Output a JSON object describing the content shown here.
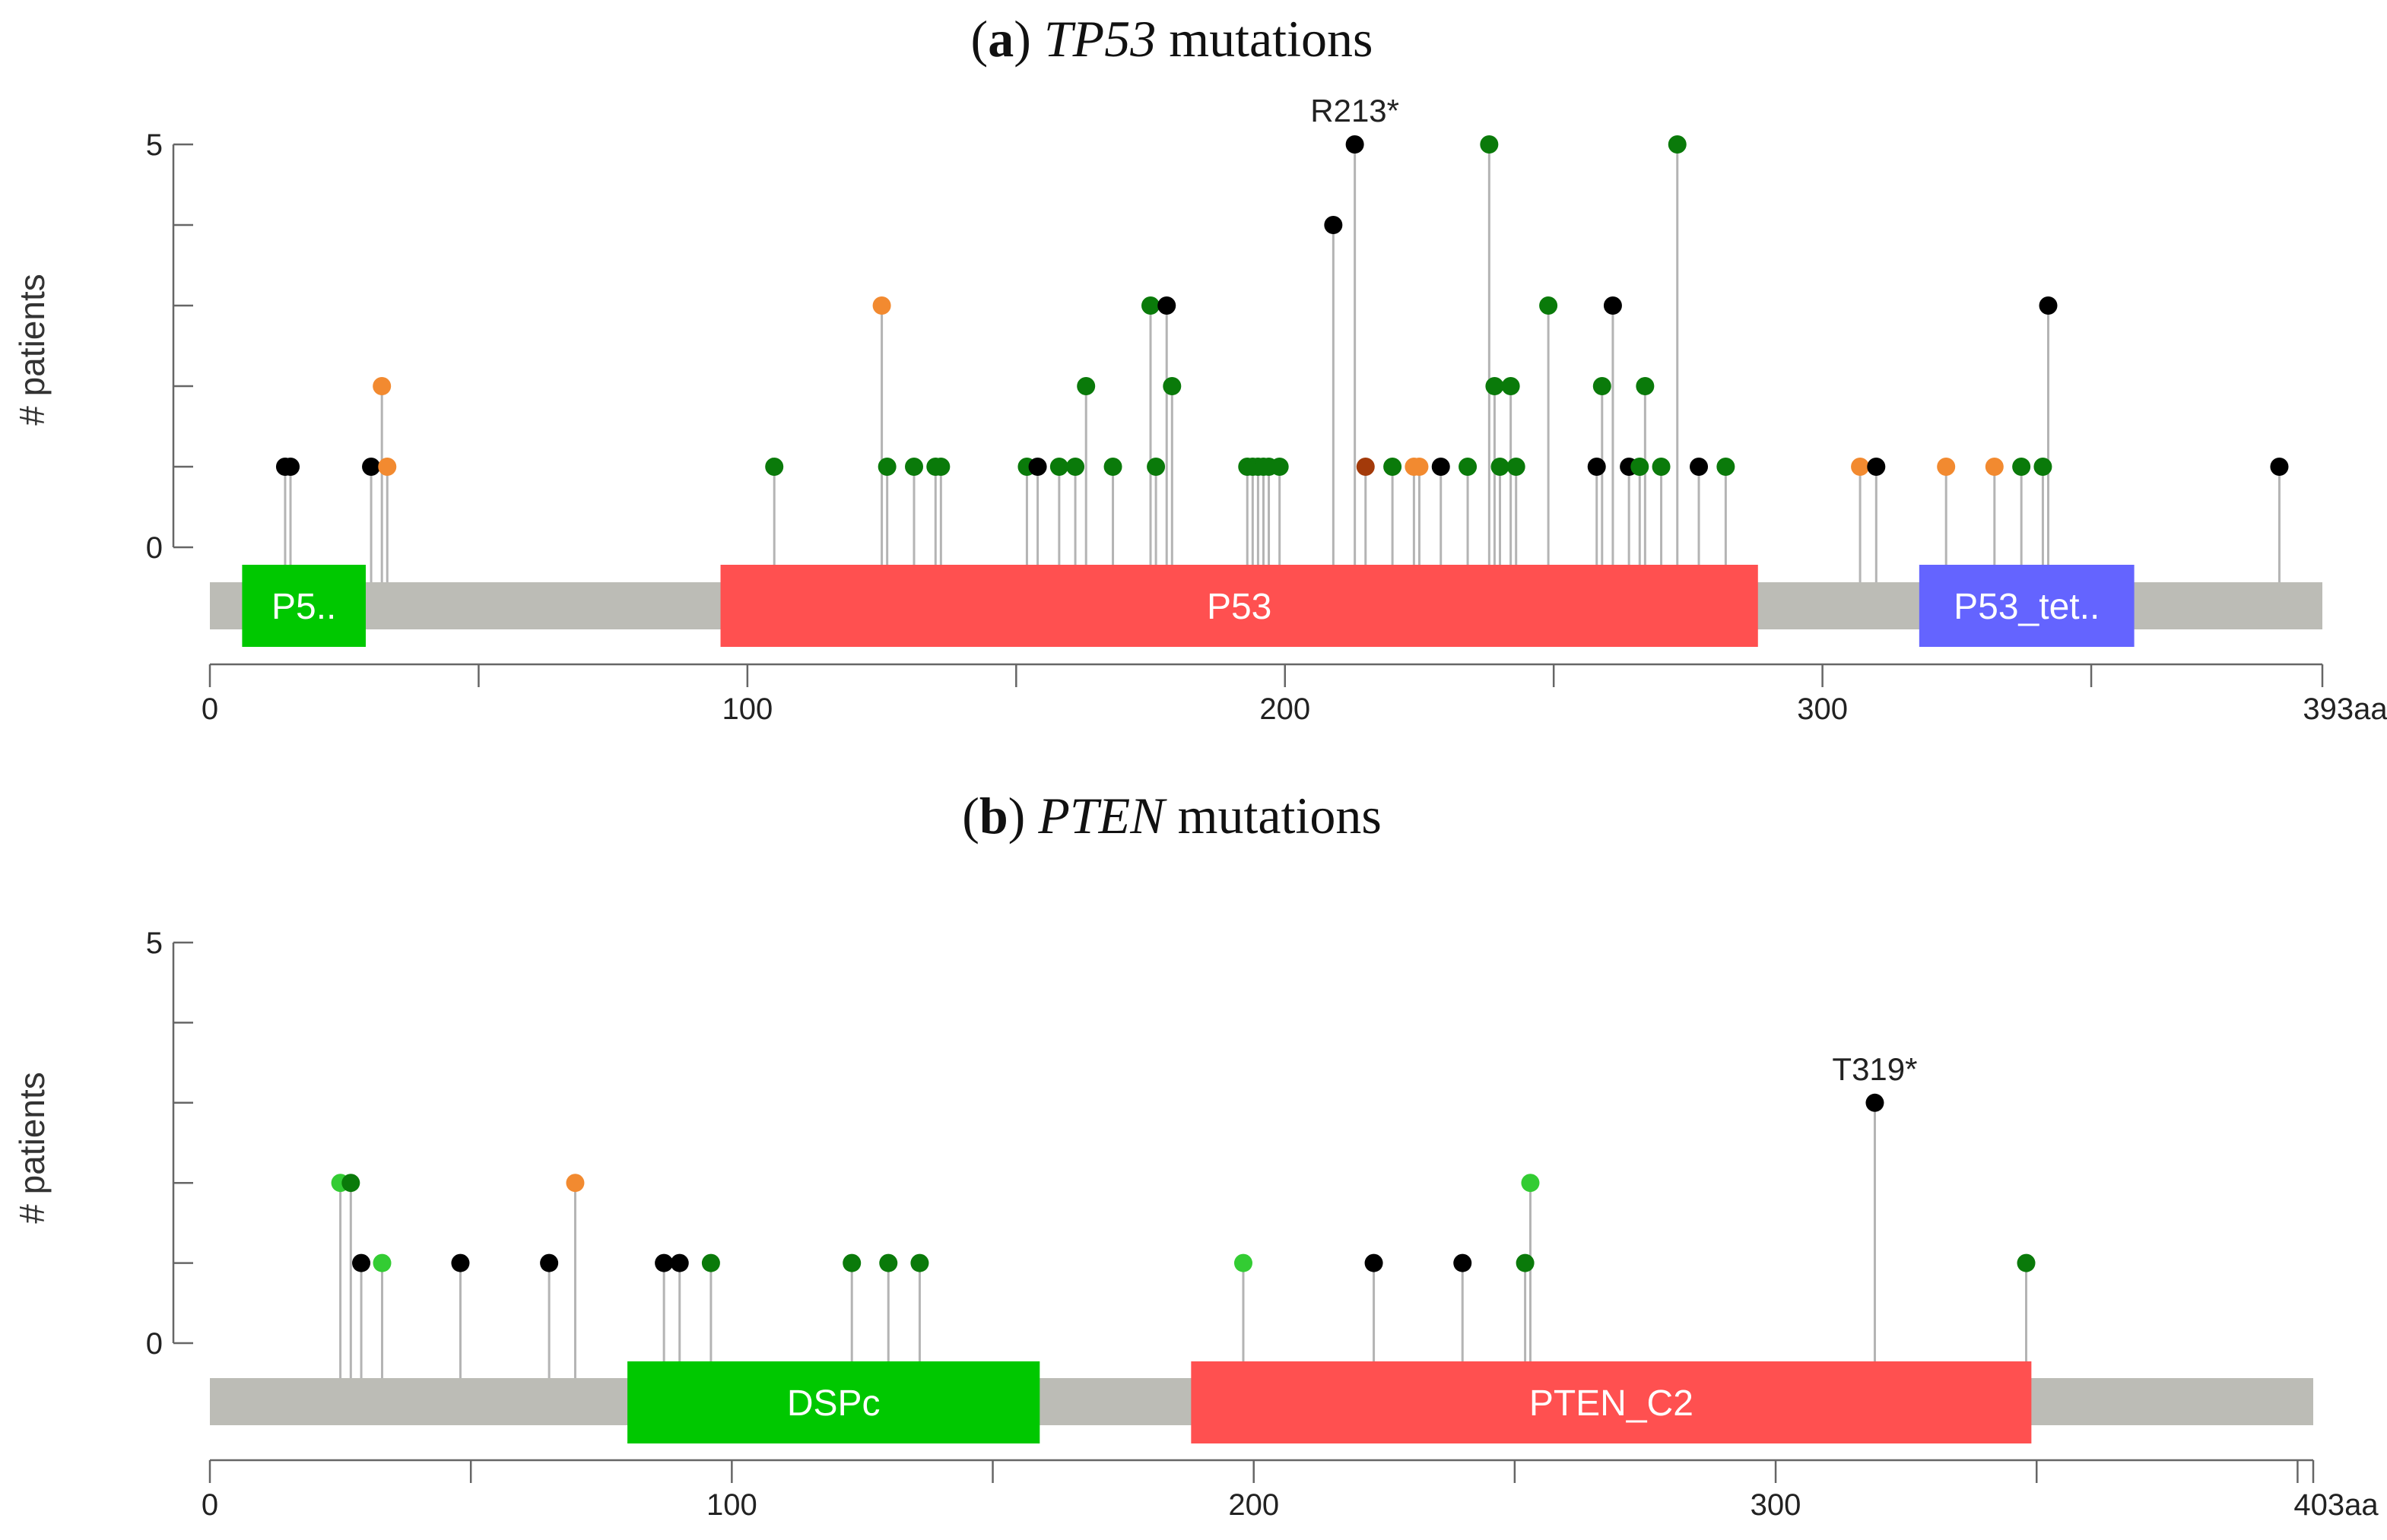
{
  "chart_data": [
    {
      "type": "scatter",
      "subtype": "lollipop",
      "title": {
        "label": "a",
        "gene": "TP53",
        "suffix": "mutations"
      },
      "ylabel": "# patients",
      "ylim": [
        0,
        5
      ],
      "yticks": [
        "0",
        "5"
      ],
      "protein_length": 393,
      "xticks": [
        {
          "v": 0,
          "label": "0"
        },
        {
          "v": 100,
          "label": "100"
        },
        {
          "v": 200,
          "label": "200"
        },
        {
          "v": 300,
          "label": "300"
        },
        {
          "v": 393,
          "label": "393aa"
        }
      ],
      "xminor": [
        50,
        150,
        250,
        350
      ],
      "domains": [
        {
          "name": "P5..",
          "start": 6,
          "end": 29,
          "color": "#00c800"
        },
        {
          "name": "P53",
          "start": 95,
          "end": 288,
          "color": "#ff5050"
        },
        {
          "name": "P53_tet..",
          "start": 318,
          "end": 358,
          "color": "#6464ff"
        }
      ],
      "mutations": [
        {
          "pos": 14,
          "count": 1,
          "color": "#000000"
        },
        {
          "pos": 15,
          "count": 1,
          "color": "#000000"
        },
        {
          "pos": 30,
          "count": 1,
          "color": "#000000"
        },
        {
          "pos": 32,
          "count": 2,
          "color": "#f28a30"
        },
        {
          "pos": 33,
          "count": 1,
          "color": "#f28a30"
        },
        {
          "pos": 105,
          "count": 1,
          "color": "#0a7a0a"
        },
        {
          "pos": 125,
          "count": 3,
          "color": "#f28a30"
        },
        {
          "pos": 126,
          "count": 1,
          "color": "#0a7a0a"
        },
        {
          "pos": 131,
          "count": 1,
          "color": "#0a7a0a"
        },
        {
          "pos": 135,
          "count": 1,
          "color": "#0a7a0a"
        },
        {
          "pos": 136,
          "count": 1,
          "color": "#0a7a0a"
        },
        {
          "pos": 152,
          "count": 1,
          "color": "#0a7a0a"
        },
        {
          "pos": 154,
          "count": 1,
          "color": "#000000"
        },
        {
          "pos": 158,
          "count": 1,
          "color": "#0a7a0a"
        },
        {
          "pos": 161,
          "count": 1,
          "color": "#0a7a0a"
        },
        {
          "pos": 163,
          "count": 2,
          "color": "#0a7a0a"
        },
        {
          "pos": 168,
          "count": 1,
          "color": "#0a7a0a"
        },
        {
          "pos": 175,
          "count": 3,
          "color": "#0a7a0a"
        },
        {
          "pos": 176,
          "count": 1,
          "color": "#0a7a0a"
        },
        {
          "pos": 178,
          "count": 3,
          "color": "#000000"
        },
        {
          "pos": 179,
          "count": 2,
          "color": "#0a7a0a"
        },
        {
          "pos": 193,
          "count": 1,
          "color": "#0a7a0a"
        },
        {
          "pos": 194,
          "count": 1,
          "color": "#0a7a0a"
        },
        {
          "pos": 195,
          "count": 1,
          "color": "#0a7a0a"
        },
        {
          "pos": 196,
          "count": 1,
          "color": "#0a7a0a"
        },
        {
          "pos": 197,
          "count": 1,
          "color": "#0a7a0a"
        },
        {
          "pos": 199,
          "count": 1,
          "color": "#0a7a0a"
        },
        {
          "pos": 209,
          "count": 4,
          "color": "#000000"
        },
        {
          "pos": 213,
          "count": 5,
          "color": "#000000",
          "label": "R213*"
        },
        {
          "pos": 215,
          "count": 1,
          "color": "#a33a0a"
        },
        {
          "pos": 220,
          "count": 1,
          "color": "#0a7a0a"
        },
        {
          "pos": 224,
          "count": 1,
          "color": "#f28a30"
        },
        {
          "pos": 225,
          "count": 1,
          "color": "#f28a30"
        },
        {
          "pos": 229,
          "count": 1,
          "color": "#000000"
        },
        {
          "pos": 234,
          "count": 1,
          "color": "#0a7a0a"
        },
        {
          "pos": 238,
          "count": 5,
          "color": "#0a7a0a"
        },
        {
          "pos": 239,
          "count": 2,
          "color": "#0a7a0a"
        },
        {
          "pos": 240,
          "count": 1,
          "color": "#0a7a0a"
        },
        {
          "pos": 242,
          "count": 2,
          "color": "#0a7a0a"
        },
        {
          "pos": 243,
          "count": 1,
          "color": "#0a7a0a"
        },
        {
          "pos": 249,
          "count": 3,
          "color": "#0a7a0a"
        },
        {
          "pos": 258,
          "count": 1,
          "color": "#000000"
        },
        {
          "pos": 259,
          "count": 2,
          "color": "#0a7a0a"
        },
        {
          "pos": 261,
          "count": 3,
          "color": "#000000"
        },
        {
          "pos": 264,
          "count": 1,
          "color": "#000000"
        },
        {
          "pos": 266,
          "count": 1,
          "color": "#0a7a0a"
        },
        {
          "pos": 267,
          "count": 2,
          "color": "#0a7a0a"
        },
        {
          "pos": 270,
          "count": 1,
          "color": "#0a7a0a"
        },
        {
          "pos": 273,
          "count": 5,
          "color": "#0a7a0a"
        },
        {
          "pos": 277,
          "count": 1,
          "color": "#000000"
        },
        {
          "pos": 282,
          "count": 1,
          "color": "#0a7a0a"
        },
        {
          "pos": 307,
          "count": 1,
          "color": "#f28a30"
        },
        {
          "pos": 310,
          "count": 1,
          "color": "#000000"
        },
        {
          "pos": 323,
          "count": 1,
          "color": "#f28a30"
        },
        {
          "pos": 332,
          "count": 1,
          "color": "#f28a30"
        },
        {
          "pos": 337,
          "count": 1,
          "color": "#0a7a0a"
        },
        {
          "pos": 341,
          "count": 1,
          "color": "#0a7a0a"
        },
        {
          "pos": 342,
          "count": 3,
          "color": "#000000"
        },
        {
          "pos": 385,
          "count": 1,
          "color": "#000000"
        }
      ]
    },
    {
      "type": "scatter",
      "subtype": "lollipop",
      "title": {
        "label": "b",
        "gene": "PTEN",
        "suffix": "mutations"
      },
      "ylabel": "# patients",
      "ylim": [
        0,
        5
      ],
      "yticks": [
        "0",
        "5"
      ],
      "protein_length": 403,
      "xticks": [
        {
          "v": 0,
          "label": "0"
        },
        {
          "v": 100,
          "label": "100"
        },
        {
          "v": 200,
          "label": "200"
        },
        {
          "v": 300,
          "label": "300"
        },
        {
          "v": 403,
          "label": "403aa"
        }
      ],
      "xminor": [
        50,
        150,
        250,
        350,
        400
      ],
      "domains": [
        {
          "name": "DSPc",
          "start": 80,
          "end": 159,
          "color": "#00c800"
        },
        {
          "name": "PTEN_C2",
          "start": 188,
          "end": 349,
          "color": "#ff5050"
        }
      ],
      "mutations": [
        {
          "pos": 25,
          "count": 2,
          "color": "#33cc33"
        },
        {
          "pos": 27,
          "count": 2,
          "color": "#0a7a0a"
        },
        {
          "pos": 29,
          "count": 1,
          "color": "#000000"
        },
        {
          "pos": 33,
          "count": 1,
          "color": "#33cc33"
        },
        {
          "pos": 48,
          "count": 1,
          "color": "#000000"
        },
        {
          "pos": 65,
          "count": 1,
          "color": "#000000"
        },
        {
          "pos": 70,
          "count": 2,
          "color": "#f28a30"
        },
        {
          "pos": 87,
          "count": 1,
          "color": "#000000"
        },
        {
          "pos": 90,
          "count": 1,
          "color": "#000000"
        },
        {
          "pos": 96,
          "count": 1,
          "color": "#0a7a0a"
        },
        {
          "pos": 123,
          "count": 1,
          "color": "#0a7a0a"
        },
        {
          "pos": 130,
          "count": 1,
          "color": "#0a7a0a"
        },
        {
          "pos": 136,
          "count": 1,
          "color": "#0a7a0a"
        },
        {
          "pos": 198,
          "count": 1,
          "color": "#33cc33"
        },
        {
          "pos": 223,
          "count": 1,
          "color": "#000000"
        },
        {
          "pos": 240,
          "count": 1,
          "color": "#000000"
        },
        {
          "pos": 252,
          "count": 1,
          "color": "#0a7a0a"
        },
        {
          "pos": 253,
          "count": 2,
          "color": "#33cc33"
        },
        {
          "pos": 319,
          "count": 3,
          "color": "#000000",
          "label": "T319*"
        },
        {
          "pos": 348,
          "count": 1,
          "color": "#0a7a0a"
        }
      ]
    }
  ]
}
